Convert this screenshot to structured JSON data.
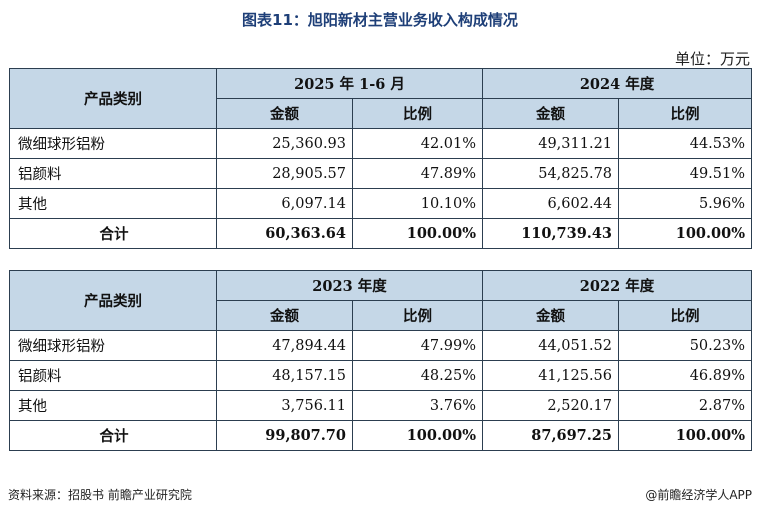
{
  "title": "图表11：旭阳新材主营业务收入构成情况",
  "unit": "单位：万元",
  "tables": [
    {
      "category_header": "产品类别",
      "periods": [
        "2025 年 1-6 月",
        "2024 年度"
      ],
      "sub_headers": [
        "金额",
        "比例",
        "金额",
        "比例"
      ],
      "rows": [
        {
          "name": "微细球形铝粉",
          "cells": [
            "25,360.93",
            "42.01%",
            "49,311.21",
            "44.53%"
          ]
        },
        {
          "name": "铝颜料",
          "cells": [
            "28,905.57",
            "47.89%",
            "54,825.78",
            "49.51%"
          ]
        },
        {
          "name": "其他",
          "cells": [
            "6,097.14",
            "10.10%",
            "6,602.44",
            "5.96%"
          ]
        },
        {
          "name": "合计",
          "cells": [
            "60,363.64",
            "100.00%",
            "110,739.43",
            "100.00%"
          ]
        }
      ]
    },
    {
      "category_header": "产品类别",
      "periods": [
        "2023 年度",
        "2022 年度"
      ],
      "sub_headers": [
        "金额",
        "比例",
        "金额",
        "比例"
      ],
      "rows": [
        {
          "name": "微细球形铝粉",
          "cells": [
            "47,894.44",
            "47.99%",
            "44,051.52",
            "50.23%"
          ]
        },
        {
          "name": "铝颜料",
          "cells": [
            "48,157.15",
            "48.25%",
            "41,125.56",
            "46.89%"
          ]
        },
        {
          "name": "其他",
          "cells": [
            "3,756.11",
            "3.76%",
            "2,520.17",
            "2.87%"
          ]
        },
        {
          "name": "合计",
          "cells": [
            "99,807.70",
            "100.00%",
            "87,697.25",
            "100.00%"
          ]
        }
      ]
    }
  ],
  "footer": {
    "source": "资料来源：招股书 前瞻产业研究院",
    "brand": "@前瞻经济学人APP"
  },
  "colors": {
    "title": "#1e3f78",
    "header_fill": "#c5d7e7",
    "border": "#2c3e50"
  }
}
